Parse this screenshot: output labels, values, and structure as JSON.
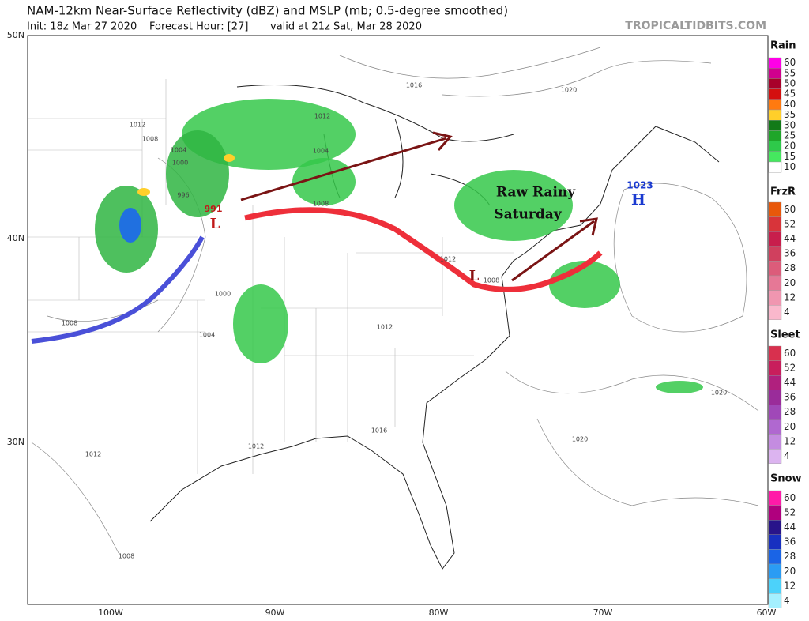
{
  "header": {
    "title": "NAM-12km Near-Surface Reflectivity (dBZ) and MSLP (mb; 0.5-degree smoothed)",
    "init": "Init: 18z Mar 27 2020",
    "forecast_hour": "Forecast Hour: [27]",
    "valid": "valid at 21z Sat, Mar 28 2020",
    "watermark": "TROPICALTIDBITS.COM"
  },
  "map": {
    "lat_labels": [
      "50N",
      "40N",
      "30N"
    ],
    "lon_labels": [
      "100W",
      "90W",
      "80W",
      "70W",
      "60W"
    ],
    "annotation": [
      "Raw Rainy",
      "Saturday"
    ],
    "highs": [
      {
        "symbol": "H",
        "pressure": "1023"
      }
    ],
    "lows": [
      {
        "symbol": "L",
        "pressure": "991"
      },
      {
        "symbol": "L"
      }
    ],
    "isobar_labels": [
      "1016",
      "1020",
      "1012",
      "1008",
      "1004",
      "1000",
      "996",
      "1012",
      "1004",
      "1008",
      "1012",
      "1004",
      "1000",
      "1008",
      "1012",
      "1008",
      "1016",
      "1012",
      "1012",
      "1020",
      "1020",
      "1008"
    ]
  },
  "legend": [
    {
      "title": "Rain",
      "ticks": [
        60,
        55,
        50,
        45,
        40,
        35,
        30,
        25,
        20,
        15,
        10
      ],
      "colors": [
        "#ff00e6",
        "#d0008e",
        "#a8002a",
        "#d40f0f",
        "#ff7a10",
        "#ffcf2a",
        "#127a18",
        "#1fa62a",
        "#2ec94a",
        "#45e85f",
        "#ffffff"
      ]
    },
    {
      "title": "FrzR",
      "ticks": [
        60,
        52,
        44,
        36,
        28,
        20,
        12,
        4
      ],
      "colors": [
        "#e8580a",
        "#d8343a",
        "#c81e4c",
        "#d0405e",
        "#dc5c7a",
        "#e67896",
        "#f096b0",
        "#fab8cc"
      ]
    },
    {
      "title": "Sleet",
      "ticks": [
        60,
        52,
        44,
        36,
        28,
        20,
        12,
        4
      ],
      "colors": [
        "#d8304e",
        "#c81e5c",
        "#b0207e",
        "#9a2c9a",
        "#a048b8",
        "#b068d0",
        "#c48ce0",
        "#dcb4f0"
      ]
    },
    {
      "title": "Snow",
      "ticks": [
        60,
        52,
        44,
        36,
        28,
        20,
        12,
        4
      ],
      "colors": [
        "#ff1aa8",
        "#b0007e",
        "#28148a",
        "#1830c0",
        "#1a64e6",
        "#2a9cf4",
        "#4cd2fa",
        "#a4f0ff"
      ]
    }
  ]
}
